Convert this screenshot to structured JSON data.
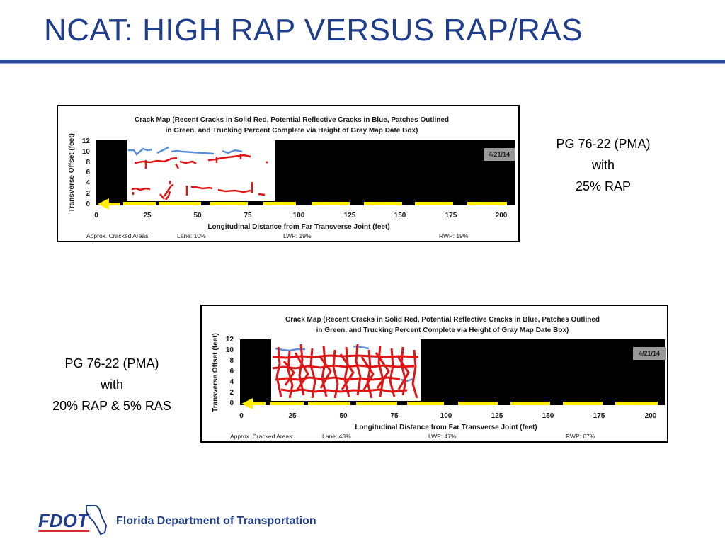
{
  "slide": {
    "title": "NCAT: HIGH RAP VERSUS RAP/RAS",
    "footer": {
      "org_name": "Florida Department of Transportation",
      "logo_text": "FDOT"
    }
  },
  "colors": {
    "title_blue": "#1f3d8a",
    "rule_blue": "#2b4b97",
    "recent_cracks": "#e01616",
    "reflective_cracks": "#5b8fd6",
    "truck_progress": "#ffee00",
    "map_background": "#000000"
  },
  "sections": [
    {
      "description": [
        "PG 76-22 (PMA)",
        "with",
        "25% RAP"
      ],
      "crack_map": {
        "title_line1": "Crack Map (Recent Cracks in Solid Red, Potential Reflective Cracks in Blue, Patches Outlined",
        "title_line2": "in Green,  and Trucking Percent Complete via Height of Gray Map Date Box)",
        "y_label": "Transverse Offset (feet)",
        "x_label": "Longitudinal Distance from Far Transverse Joint (feet)",
        "y_ticks": [
          "12",
          "10",
          "8",
          "6",
          "4",
          "2",
          "0"
        ],
        "x_ticks": [
          "0",
          "25",
          "50",
          "75",
          "100",
          "125",
          "150",
          "175",
          "200"
        ],
        "date": "4/21/14",
        "areas_label": "Approx. Cracked Areas:",
        "lane": "Lane: 10%",
        "lwp": "LWP: 19%",
        "rwp": "RWP: 19%",
        "white_section_ft": [
          15,
          88
        ]
      }
    },
    {
      "description": [
        "PG 76-22 (PMA)",
        "with",
        "20% RAP & 5% RAS"
      ],
      "crack_map": {
        "title_line1": "Crack Map (Recent Cracks in Solid Red, Potential Reflective Cracks in Blue, Patches Outlined",
        "title_line2": "in Green,  and Trucking Percent Complete via Height of Gray Map Date Box)",
        "y_label": "Transverse Offset (feet)",
        "x_label": "Longitudinal Distance from Far Transverse Joint (feet)",
        "y_ticks": [
          "12",
          "10",
          "8",
          "6",
          "4",
          "2",
          "0"
        ],
        "x_ticks": [
          "0",
          "25",
          "50",
          "75",
          "100",
          "125",
          "150",
          "175",
          "200"
        ],
        "date": "4/21/14",
        "areas_label": "Approx. Cracked Areas:",
        "lane": "Lane: 43%",
        "lwp": "LWP: 47%",
        "rwp": "RWP: 67%",
        "white_section_ft": [
          15,
          88
        ]
      }
    }
  ]
}
